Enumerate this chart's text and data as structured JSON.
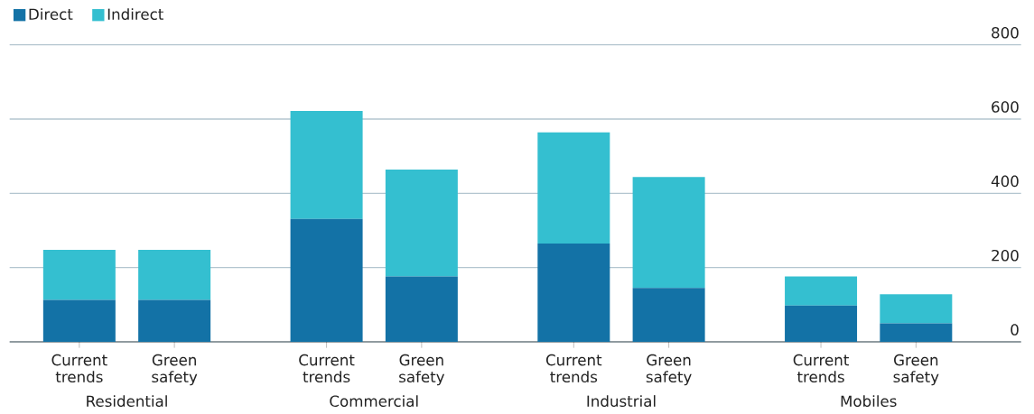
{
  "chart_data": {
    "type": "bar",
    "stacked": true,
    "categories": [
      "Current trends",
      "Green safety",
      "Current trends",
      "Green safety",
      "Current trends",
      "Green safety",
      "Current trends",
      "Green safety"
    ],
    "series": [
      {
        "name": "Direct",
        "color": "#1372a6",
        "values": [
          113,
          113,
          331,
          176,
          265,
          145,
          98,
          50
        ]
      },
      {
        "name": "Indirect",
        "color": "#34bfd0",
        "values": [
          135,
          135,
          291,
          288,
          299,
          299,
          78,
          78
        ]
      }
    ],
    "annotations": [
      "Residential",
      "Commercial",
      "Industrial",
      "Mobiles"
    ],
    "ylim": [
      0,
      800
    ],
    "yticks": [
      0,
      200,
      400,
      600,
      800
    ],
    "grid": "y",
    "legend": "top left"
  }
}
